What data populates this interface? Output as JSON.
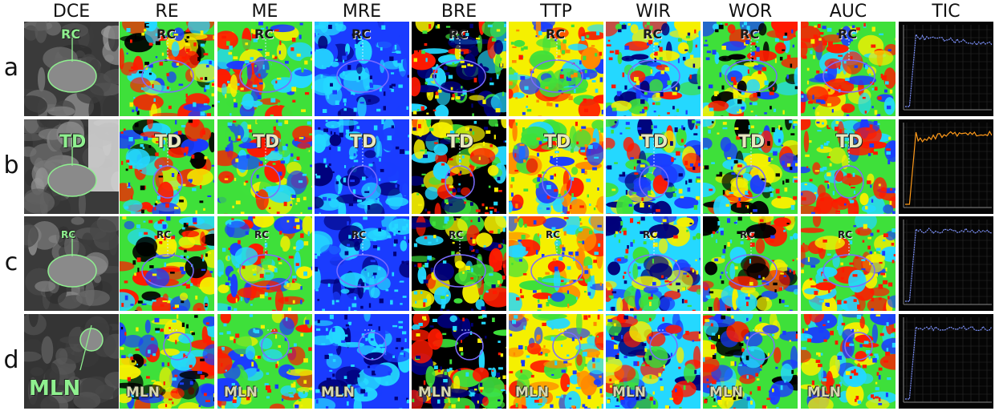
{
  "columns": [
    "DCE",
    "RE",
    "ME",
    "MRE",
    "BRE",
    "TTP",
    "WIR",
    "WOR",
    "AUC",
    "TIC"
  ],
  "rows": [
    {
      "letter": "a",
      "label": "RC"
    },
    {
      "letter": "b",
      "label": "TD"
    },
    {
      "letter": "c",
      "label": "RC"
    },
    {
      "letter": "d",
      "label": "MLN"
    }
  ],
  "colors": {
    "red": "#ff1a00",
    "orange": "#ff8a00",
    "yellow": "#f5f000",
    "green": "#3ee03a",
    "cyan": "#24d8ff",
    "blue": "#1a3cff",
    "navy": "#00007a",
    "black": "#000000"
  }
}
